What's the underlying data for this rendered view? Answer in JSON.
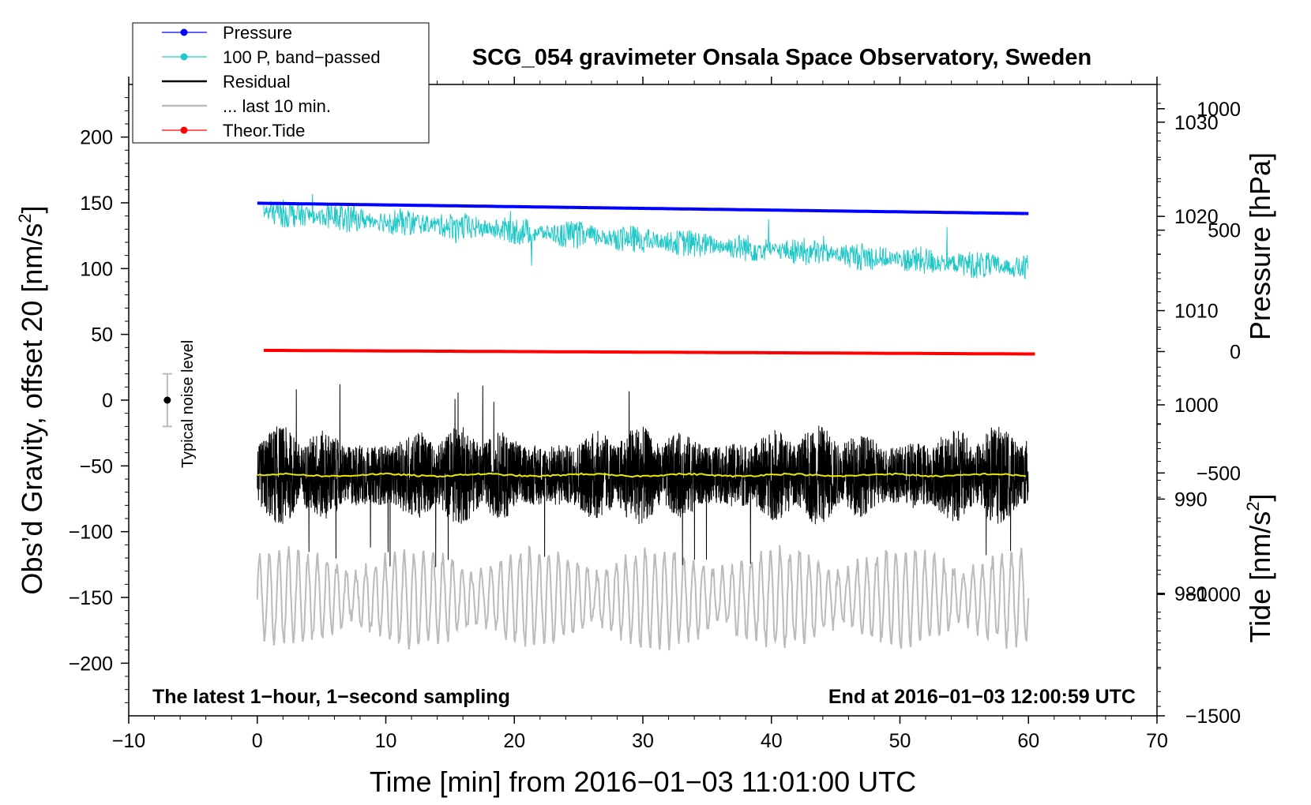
{
  "chart_data": {
    "type": "line",
    "title": "SCG_054 gravimeter Onsala Space Observatory, Sweden",
    "xlabel": "Time [min] from 2016−01−03 11:01:00 UTC",
    "ylabel_left": "Obs’d Gravity, offset 20 [nm/s",
    "ylabel_left_sup": "2",
    "ylabel_left_end": "]",
    "ylabel_right_pressure": "Pressure [hPa]",
    "ylabel_right_tide": "Tide [nm/s",
    "ylabel_right_tide_sup": "2",
    "ylabel_right_tide_end": "]",
    "xlim": [
      -10,
      70
    ],
    "ylim_left": [
      -240,
      240
    ],
    "pressure_ylim": [
      967,
      1034
    ],
    "tide_ylim": [
      -1500,
      1100
    ],
    "x_ticks": [
      -10,
      0,
      10,
      20,
      30,
      40,
      50,
      60,
      70
    ],
    "x_tick_labels": [
      "−10",
      "0",
      "10",
      "20",
      "30",
      "40",
      "50",
      "60",
      "70"
    ],
    "left_ticks": [
      200,
      150,
      100,
      50,
      0,
      -50,
      -100,
      -150,
      -200
    ],
    "left_tick_labels": [
      "200",
      "150",
      "100",
      "50",
      "0",
      "−50",
      "−100",
      "−150",
      "−200"
    ],
    "pressure_ticks": [
      1030,
      1020,
      1010,
      1000,
      990,
      980
    ],
    "pressure_tick_labels": [
      "1030",
      "1020",
      "1010",
      "1000",
      "990",
      "980"
    ],
    "tide_ticks": [
      1000,
      500,
      0,
      -500,
      -1000,
      -1500
    ],
    "tide_tick_labels": [
      "1000",
      "500",
      "0",
      "−500",
      "−1000",
      "−1500"
    ],
    "legend": [
      {
        "label": "Pressure",
        "color": "#0000ff",
        "marker": true
      },
      {
        "label": "100 P, band−passed",
        "color": "#20c8c8",
        "marker": true
      },
      {
        "label": "Residual",
        "color": "#000000",
        "marker": false
      },
      {
        "label": "... last 10 min.",
        "color": "#bbbbbb",
        "marker": false
      },
      {
        "label": "Theor.Tide",
        "color": "#ff0000",
        "marker": true
      }
    ],
    "annotations": {
      "left": "The latest 1−hour, 1−second sampling",
      "right": "End at 2016−01−03 12:00:59 UTC",
      "noise": "Typical noise level"
    },
    "noise_level": {
      "x": -7,
      "center": 0,
      "halfwidth": 20
    },
    "colors": {
      "pressure": "#0000ff",
      "bandpassed": "#20c8c8",
      "residual": "#000000",
      "last10": "#bbbbbb",
      "tide": "#ff0000",
      "mean": "#e8e800"
    },
    "series": [
      {
        "name": "Pressure",
        "axis": "pressure",
        "x_range": [
          0,
          60
        ],
        "start": 1021.4,
        "end": 1020.3
      },
      {
        "name": "100 P, band−passed",
        "axis": "left",
        "x_range": [
          0.5,
          60
        ],
        "start": 143,
        "end": 100,
        "amplitude": 9
      },
      {
        "name": "Residual",
        "axis": "left",
        "x_range": [
          0,
          60
        ],
        "mean": -57,
        "amplitude": 38
      },
      {
        "name": "Residual mean",
        "axis": "left",
        "x_range": [
          0,
          60
        ],
        "mean": -57
      },
      {
        "name": "... last 10 min.",
        "axis": "left",
        "x_range": [
          0,
          60
        ],
        "mean": -150,
        "amplitude": 35
      },
      {
        "name": "Theor.Tide",
        "axis": "tide",
        "x_range": [
          0.5,
          60.5
        ],
        "start": 5,
        "end": -10
      }
    ]
  }
}
